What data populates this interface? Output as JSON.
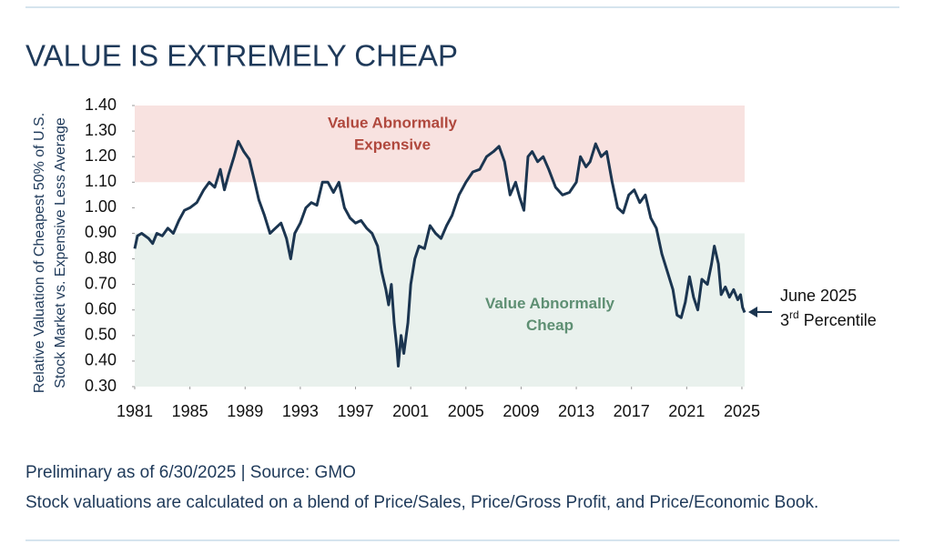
{
  "chart_data": {
    "type": "line",
    "title": "VALUE IS EXTREMELY CHEAP",
    "y_label": [
      "Relative Valuation of Cheapest 50% of U.S.",
      "Stock Market vs. Expensive Less Average"
    ],
    "x": [
      1981.0,
      1981.2,
      1981.5,
      1982.0,
      1982.3,
      1982.6,
      1983.0,
      1983.4,
      1983.8,
      1984.2,
      1984.6,
      1985.0,
      1985.5,
      1986.0,
      1986.4,
      1986.8,
      1987.2,
      1987.5,
      1987.8,
      1988.2,
      1988.5,
      1988.9,
      1989.3,
      1989.7,
      1990.0,
      1990.4,
      1990.8,
      1991.2,
      1991.6,
      1992.0,
      1992.3,
      1992.6,
      1993.0,
      1993.4,
      1993.8,
      1994.2,
      1994.6,
      1995.0,
      1995.4,
      1995.8,
      1996.2,
      1996.6,
      1997.0,
      1997.4,
      1997.8,
      1998.2,
      1998.6,
      1998.9,
      1999.2,
      1999.4,
      1999.6,
      1999.8,
      2000.0,
      2000.1,
      2000.3,
      2000.5,
      2000.8,
      2001.0,
      2001.3,
      2001.6,
      2002.0,
      2002.4,
      2002.8,
      2003.2,
      2003.6,
      2004.0,
      2004.5,
      2005.0,
      2005.5,
      2006.0,
      2006.5,
      2007.0,
      2007.4,
      2007.8,
      2008.2,
      2008.6,
      2008.9,
      2009.2,
      2009.5,
      2009.8,
      2010.2,
      2010.6,
      2011.0,
      2011.5,
      2012.0,
      2012.5,
      2013.0,
      2013.3,
      2013.7,
      2014.0,
      2014.4,
      2014.8,
      2015.2,
      2015.6,
      2016.0,
      2016.4,
      2016.8,
      2017.2,
      2017.6,
      2018.0,
      2018.4,
      2018.8,
      2019.2,
      2019.6,
      2020.0,
      2020.3,
      2020.6,
      2020.9,
      2021.2,
      2021.5,
      2021.8,
      2022.1,
      2022.5,
      2022.8,
      2023.0,
      2023.3,
      2023.5,
      2023.8,
      2024.1,
      2024.4,
      2024.7,
      2024.9,
      2025.05,
      2025.2
    ],
    "series": [
      {
        "color": "#1b3550",
        "values": [
          0.84,
          0.89,
          0.9,
          0.88,
          0.86,
          0.9,
          0.89,
          0.92,
          0.9,
          0.95,
          0.99,
          1.0,
          1.02,
          1.07,
          1.1,
          1.08,
          1.15,
          1.07,
          1.13,
          1.2,
          1.26,
          1.22,
          1.19,
          1.1,
          1.03,
          0.97,
          0.9,
          0.92,
          0.94,
          0.88,
          0.8,
          0.9,
          0.94,
          1.0,
          1.02,
          1.01,
          1.1,
          1.1,
          1.06,
          1.1,
          1.0,
          0.96,
          0.94,
          0.95,
          0.92,
          0.9,
          0.85,
          0.75,
          0.68,
          0.62,
          0.7,
          0.55,
          0.45,
          0.38,
          0.5,
          0.43,
          0.55,
          0.7,
          0.8,
          0.85,
          0.84,
          0.93,
          0.9,
          0.88,
          0.93,
          0.97,
          1.05,
          1.1,
          1.14,
          1.15,
          1.2,
          1.22,
          1.24,
          1.18,
          1.05,
          1.1,
          1.04,
          0.99,
          1.2,
          1.22,
          1.18,
          1.2,
          1.15,
          1.08,
          1.05,
          1.06,
          1.1,
          1.2,
          1.16,
          1.18,
          1.25,
          1.2,
          1.22,
          1.1,
          1.0,
          0.98,
          1.05,
          1.07,
          1.02,
          1.05,
          0.96,
          0.92,
          0.82,
          0.75,
          0.68,
          0.58,
          0.57,
          0.63,
          0.73,
          0.65,
          0.6,
          0.72,
          0.7,
          0.78,
          0.85,
          0.78,
          0.66,
          0.69,
          0.65,
          0.68,
          0.64,
          0.66,
          0.61,
          0.59
        ]
      }
    ],
    "xlim": [
      1981,
      2025.2
    ],
    "xticks": [
      1981,
      1985,
      1989,
      1993,
      1997,
      2001,
      2005,
      2009,
      2013,
      2017,
      2021,
      2025
    ],
    "ylim": [
      0.3,
      1.4
    ],
    "yticks": [
      {
        "value": 1.4,
        "label": "1.40"
      },
      {
        "value": 1.3,
        "label": "1.30"
      },
      {
        "value": 1.2,
        "label": "1.20"
      },
      {
        "value": 1.1,
        "label": "1.10"
      },
      {
        "value": 1.0,
        "label": "1.00"
      },
      {
        "value": 0.9,
        "label": "0.90"
      },
      {
        "value": 0.8,
        "label": "0.80"
      },
      {
        "value": 0.7,
        "label": "0.70"
      },
      {
        "value": 0.6,
        "label": "0.60"
      },
      {
        "value": 0.5,
        "label": "0.50"
      },
      {
        "value": 0.4,
        "label": "0.40"
      },
      {
        "value": 0.3,
        "label": "0.30"
      }
    ],
    "bands": [
      {
        "from": 1.1,
        "to": 1.4,
        "color": "#f8e2e0",
        "label_color": "#b0483d",
        "label": [
          "Value Abnormally",
          "Expensive"
        ]
      },
      {
        "from": 0.3,
        "to": 0.9,
        "color": "#e9f1ed",
        "label_color": "#5e8f73",
        "label": [
          "Value Abnormally",
          "Cheap"
        ]
      }
    ],
    "annotation": {
      "line1": "June 2025",
      "number": "3",
      "suffix": "rd",
      "rest": " Percentile"
    },
    "notes": [
      "Preliminary as of 6/30/2025 | Source: GMO",
      "Stock valuations are calculated on a blend of Price/Sales, Price/Gross Profit, and Price/Economic Book."
    ]
  }
}
